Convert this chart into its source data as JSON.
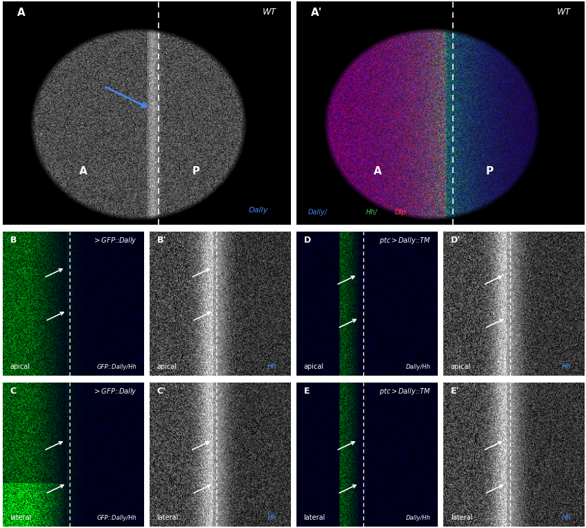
{
  "panels": [
    {
      "label": "A",
      "row": 0,
      "col": 0,
      "colspan": 1,
      "rowspan": 1,
      "genotype": "WT",
      "color_mode": "gray"
    },
    {
      "label": "A'",
      "row": 0,
      "col": 1,
      "colspan": 1,
      "rowspan": 1,
      "genotype": "WT",
      "color_mode": "color"
    },
    {
      "label": "B",
      "row": 1,
      "col": 0,
      "colspan": 1,
      "rowspan": 1,
      "genotype": ">GFP::Dally",
      "color_mode": "green_blue"
    },
    {
      "label": "B'",
      "row": 1,
      "col": 1,
      "colspan": 1,
      "rowspan": 1,
      "genotype": "",
      "color_mode": "gray"
    },
    {
      "label": "D",
      "row": 1,
      "col": 2,
      "colspan": 1,
      "rowspan": 1,
      "genotype": "ptc>Dally::TM",
      "color_mode": "green_blue"
    },
    {
      "label": "D'",
      "row": 1,
      "col": 3,
      "colspan": 1,
      "rowspan": 1,
      "genotype": "",
      "color_mode": "gray"
    },
    {
      "label": "C",
      "row": 2,
      "col": 0,
      "colspan": 1,
      "rowspan": 1,
      "genotype": ">GFP::Dally",
      "color_mode": "green_blue"
    },
    {
      "label": "C'",
      "row": 2,
      "col": 1,
      "colspan": 1,
      "rowspan": 1,
      "genotype": "",
      "color_mode": "gray"
    },
    {
      "label": "E",
      "row": 2,
      "col": 2,
      "colspan": 1,
      "rowspan": 1,
      "genotype": "ptc>Dally::TM",
      "color_mode": "green_blue"
    },
    {
      "label": "E'",
      "row": 2,
      "col": 3,
      "colspan": 1,
      "rowspan": 1,
      "genotype": "",
      "color_mode": "gray"
    }
  ],
  "bg_color": "#000000",
  "white": "#ffffff",
  "panel_bg": "#000000",
  "border_color": "#ffffff",
  "label_fontsize": 9,
  "annot_fontsize": 7
}
